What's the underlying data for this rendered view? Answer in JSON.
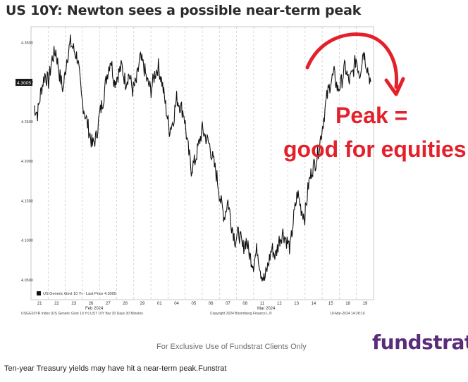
{
  "title": "US 10Y: Newton sees a possible near-term peak",
  "annotations": {
    "line1": "Peak =",
    "line2": "good for equities"
  },
  "legend_text": "US Generic Govt 10 Yr - Last Price 4.3005",
  "last_price_tag": "4.3005",
  "bloomberg_footer": {
    "left": "USGG10YR Index (US Generic Govt 10 Yr) UST 10Y Bar 30 Days 30 Minutes",
    "center": "Copyright 2024 Bloomberg Finance L.P.",
    "right": "19-Mar-2024 14:28:10"
  },
  "month_labels": [
    "Feb 2024",
    "Mar 2024"
  ],
  "footer_text": "For Exclusive Use of Fundstrat Clients Only",
  "brand": "fundstrat",
  "caption": "Ten-year Treasury yields may have hit a near-term peak.Funstrat",
  "colors": {
    "annotation": "#e4202a",
    "brand": "#5a2d7a",
    "line": "#111111"
  },
  "chart_data": {
    "type": "line",
    "series": [
      {
        "name": "US Generic Govt 10 Yr - Last Price",
        "values": [
          4.27,
          4.26,
          4.29,
          4.31,
          4.3,
          4.33,
          4.34,
          4.31,
          4.29,
          4.33,
          4.35,
          4.34,
          4.33,
          4.28,
          4.26,
          4.24,
          4.22,
          4.23,
          4.26,
          4.28,
          4.31,
          4.33,
          4.3,
          4.31,
          4.32,
          4.3,
          4.31,
          4.29,
          4.3,
          4.33,
          4.32,
          4.3,
          4.29,
          4.31,
          4.32,
          4.3,
          4.27,
          4.24,
          4.25,
          4.28,
          4.27,
          4.26,
          4.22,
          4.19,
          4.2,
          4.22,
          4.24,
          4.23,
          4.22,
          4.2,
          4.18,
          4.15,
          4.13,
          4.15,
          4.12,
          4.1,
          4.11,
          4.09,
          4.1,
          4.08,
          4.07,
          4.09,
          4.06,
          4.05,
          4.07,
          4.09,
          4.08,
          4.1,
          4.11,
          4.1,
          4.09,
          4.13,
          4.16,
          4.14,
          4.13,
          4.17,
          4.19,
          4.2,
          4.22,
          4.25,
          4.28,
          4.3,
          4.31,
          4.29,
          4.3,
          4.32,
          4.3,
          4.31,
          4.33,
          4.31,
          4.34,
          4.32,
          4.3
        ]
      }
    ],
    "x_tick_labels": [
      "21",
      "22",
      "23",
      "26",
      "27",
      "28",
      "29",
      "01",
      "04",
      "05",
      "06",
      "07",
      "08",
      "11",
      "12",
      "13",
      "14",
      "15",
      "18",
      "19"
    ],
    "y_tick_labels": [
      "4.3500",
      "4.3000",
      "4.2500",
      "4.2000",
      "4.1500",
      "4.1000",
      "4.0500"
    ],
    "ylim": [
      4.025,
      4.37
    ],
    "xlabel": "",
    "ylabel": "",
    "grid": true,
    "title": "US 10Y: Newton sees a possible near-term peak"
  }
}
